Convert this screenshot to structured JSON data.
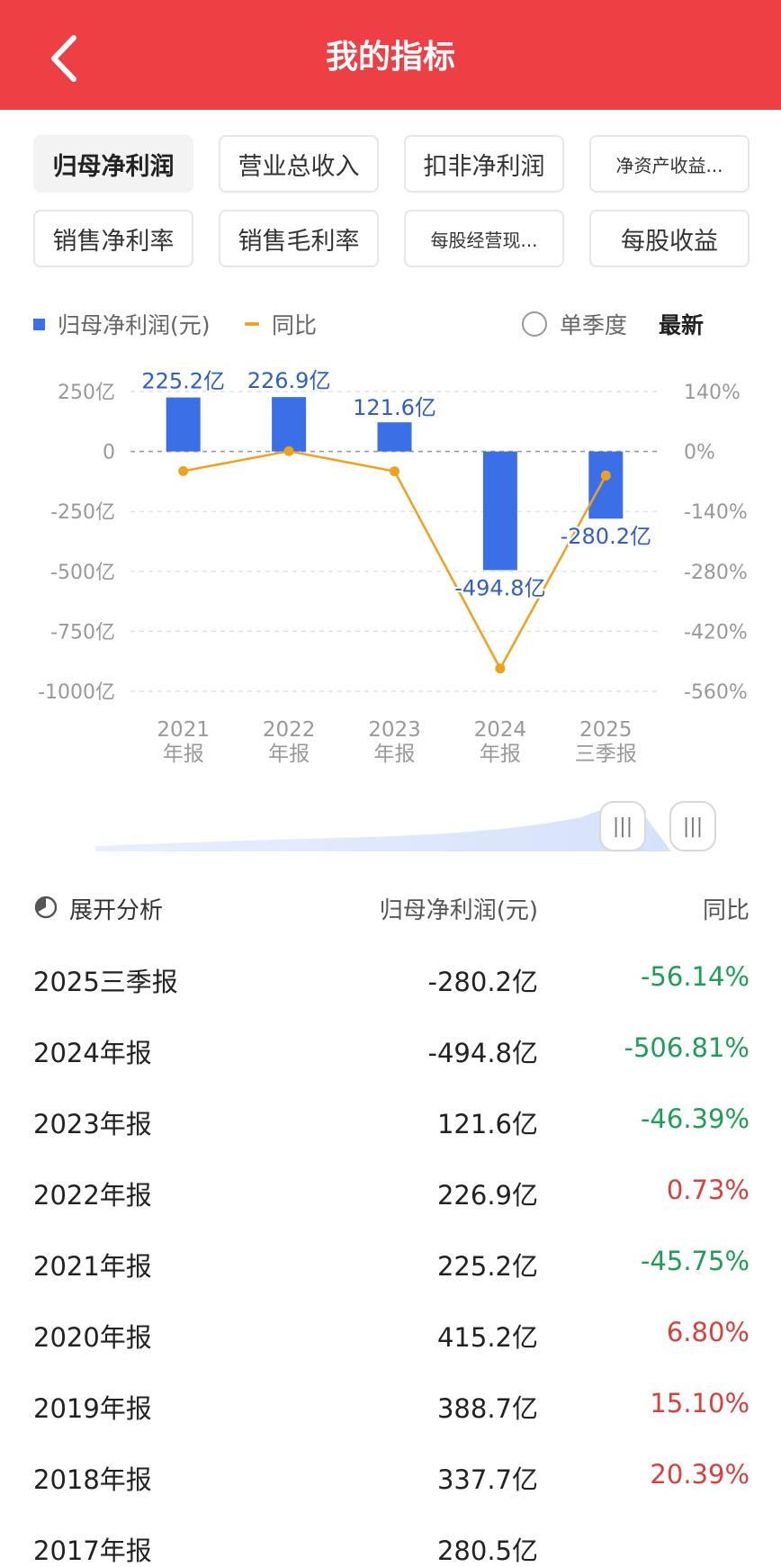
{
  "header": {
    "title": "我的指标"
  },
  "tabs": [
    {
      "label": "归母净利润",
      "active": true
    },
    {
      "label": "营业总收入",
      "active": false
    },
    {
      "label": "扣非净利润",
      "active": false
    },
    {
      "label": "净资产收益...",
      "active": false
    },
    {
      "label": "销售净利率",
      "active": false
    },
    {
      "label": "销售毛利率",
      "active": false
    },
    {
      "label": "每股经营现...",
      "active": false
    },
    {
      "label": "每股收益",
      "active": false
    }
  ],
  "legend": {
    "bar": "归母净利润(元)",
    "line": "同比",
    "single_quarter": "单季度",
    "latest": "最新"
  },
  "colors": {
    "header": "#ee3f44",
    "bar": "#3b6fe8",
    "line": "#f0a21b",
    "positive": "#d9403c",
    "negative": "#1f9e5a"
  },
  "chart_data": {
    "type": "bar",
    "categories": [
      [
        "2021",
        "年报"
      ],
      [
        "2022",
        "年报"
      ],
      [
        "2023",
        "年报"
      ],
      [
        "2024",
        "年报"
      ],
      [
        "2025",
        "三季报"
      ]
    ],
    "series": [
      {
        "name": "归母净利润(元)",
        "type": "bar",
        "axis": "left",
        "values": [
          225.2,
          226.9,
          121.6,
          -494.8,
          -280.2
        ],
        "labels": [
          "225.2亿",
          "226.9亿",
          "121.6亿",
          "-494.8亿",
          "-280.2亿"
        ]
      },
      {
        "name": "同比",
        "type": "line",
        "axis": "right",
        "values": [
          -45.75,
          0.73,
          -46.39,
          -506.81,
          -56.14
        ]
      }
    ],
    "y_left": {
      "ticks": [
        250,
        0,
        -250,
        -500,
        -750,
        -1000
      ],
      "tick_labels": [
        "250亿",
        "0",
        "-250亿",
        "-500亿",
        "-750亿",
        "-1000亿"
      ],
      "range": [
        -1000,
        250
      ]
    },
    "y_right": {
      "ticks": [
        140,
        0,
        -140,
        -280,
        -420,
        -560
      ],
      "tick_labels": [
        "140%",
        "0%",
        "-140%",
        "-280%",
        "-420%",
        "-560%"
      ],
      "range": [
        -560,
        140
      ]
    },
    "grid": "dashed-horizontal"
  },
  "slider": {
    "handle_glyph": "|||"
  },
  "analysis": {
    "expand_label": "展开分析",
    "col_profit": "归母净利润(元)",
    "col_yoy": "同比",
    "rows": [
      {
        "period": "2025三季报",
        "profit": "-280.2亿",
        "yoy": "-56.14%",
        "sign": "neg"
      },
      {
        "period": "2024年报",
        "profit": "-494.8亿",
        "yoy": "-506.81%",
        "sign": "neg"
      },
      {
        "period": "2023年报",
        "profit": "121.6亿",
        "yoy": "-46.39%",
        "sign": "neg"
      },
      {
        "period": "2022年报",
        "profit": "226.9亿",
        "yoy": "0.73%",
        "sign": "pos"
      },
      {
        "period": "2021年报",
        "profit": "225.2亿",
        "yoy": "-45.75%",
        "sign": "neg"
      },
      {
        "period": "2020年报",
        "profit": "415.2亿",
        "yoy": "6.80%",
        "sign": "pos"
      },
      {
        "period": "2019年报",
        "profit": "388.7亿",
        "yoy": "15.10%",
        "sign": "pos"
      },
      {
        "period": "2018年报",
        "profit": "337.7亿",
        "yoy": "20.39%",
        "sign": "pos"
      },
      {
        "period": "2017年报",
        "profit": "280.5亿",
        "yoy": "",
        "sign": "pos"
      }
    ]
  }
}
